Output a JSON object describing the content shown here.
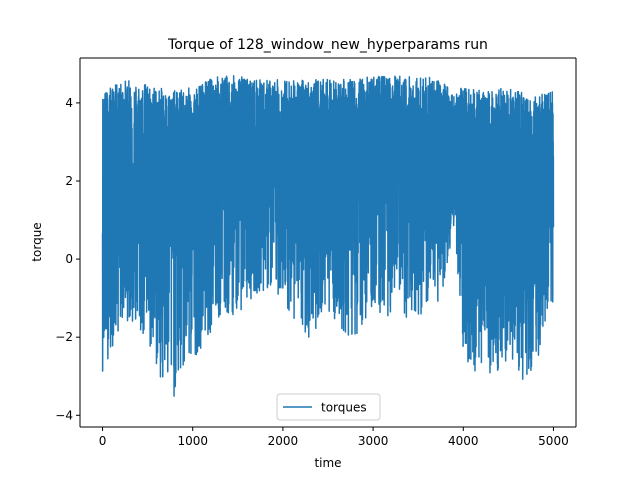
{
  "chart_data": {
    "type": "line",
    "title": "Torque of 128_window_new_hyperparams run",
    "xlabel": "time",
    "ylabel": "torque",
    "xlim": [
      -250,
      5250
    ],
    "ylim": [
      -4.3,
      5.15
    ],
    "xticks": [
      0,
      1000,
      2000,
      3000,
      4000,
      5000
    ],
    "yticks": [
      -4,
      -2,
      0,
      2,
      4
    ],
    "x_tick_labels": [
      "0",
      "1000",
      "2000",
      "3000",
      "4000",
      "5000"
    ],
    "y_tick_labels": [
      "−4",
      "−2",
      "0",
      "2",
      "4"
    ],
    "grid": false,
    "legend_position": "lower center",
    "series": [
      {
        "name": "torques",
        "color": "#1f77b4",
        "n_points": 5001,
        "x_range": [
          0,
          5000
        ],
        "envelope": [
          {
            "x": 0,
            "low": -2.9,
            "high": 4.3,
            "mean": 1.3
          },
          {
            "x": 250,
            "low": -1.5,
            "high": 4.6,
            "mean": 1.5
          },
          {
            "x": 500,
            "low": -2.3,
            "high": 4.5,
            "mean": 1.6
          },
          {
            "x": 750,
            "low": -3.8,
            "high": 4.3,
            "mean": 1.5
          },
          {
            "x": 1000,
            "low": -2.6,
            "high": 4.4,
            "mean": 1.7
          },
          {
            "x": 1250,
            "low": -1.7,
            "high": 4.7,
            "mean": 1.9
          },
          {
            "x": 1500,
            "low": -1.4,
            "high": 4.7,
            "mean": 2.0
          },
          {
            "x": 1750,
            "low": -0.8,
            "high": 4.6,
            "mean": 2.1
          },
          {
            "x": 2000,
            "low": -1.0,
            "high": 4.6,
            "mean": 2.1
          },
          {
            "x": 2250,
            "low": -2.2,
            "high": 4.6,
            "mean": 2.1
          },
          {
            "x": 2500,
            "low": -1.3,
            "high": 4.6,
            "mean": 2.1
          },
          {
            "x": 2750,
            "low": -2.2,
            "high": 4.6,
            "mean": 2.1
          },
          {
            "x": 3000,
            "low": -1.3,
            "high": 4.7,
            "mean": 2.1
          },
          {
            "x": 3250,
            "low": -1.6,
            "high": 4.7,
            "mean": 2.1
          },
          {
            "x": 3500,
            "low": -1.5,
            "high": 4.7,
            "mean": 2.1
          },
          {
            "x": 3750,
            "low": -1.1,
            "high": 4.6,
            "mean": 2.1
          },
          {
            "x": 3900,
            "low": 0.9,
            "high": 4.3,
            "mean": 2.3
          },
          {
            "x": 4000,
            "low": -2.5,
            "high": 4.4,
            "mean": 1.6
          },
          {
            "x": 4250,
            "low": -3.2,
            "high": 4.3,
            "mean": 1.4
          },
          {
            "x": 4500,
            "low": -2.6,
            "high": 4.4,
            "mean": 1.5
          },
          {
            "x": 4750,
            "low": -3.6,
            "high": 4.2,
            "mean": 1.4
          },
          {
            "x": 5000,
            "low": -1.6,
            "high": 4.3,
            "mean": 1.5
          }
        ]
      }
    ]
  }
}
